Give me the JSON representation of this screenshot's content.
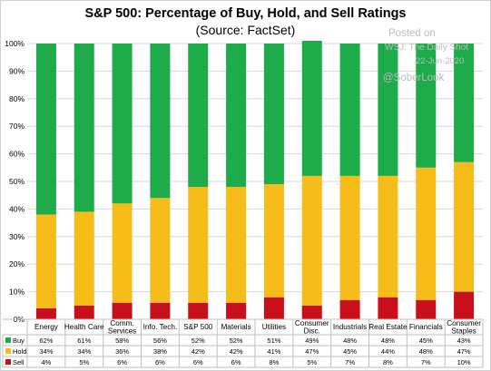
{
  "title": "S&P 500: Percentage of Buy, Hold, and Sell Ratings",
  "subtitle": "(Source: FactSet)",
  "watermark": {
    "posted": "Posted on",
    "source": "WSJ: The Daily Shot",
    "date": "22-Jun-2020",
    "handle": "@SoberLook"
  },
  "colors": {
    "buy": "#1eab4a",
    "hold": "#f6bd1a",
    "sell": "#c8101c"
  },
  "chart_data": {
    "type": "bar",
    "stacked": true,
    "title": "S&P 500: Percentage of Buy, Hold, and Sell Ratings",
    "subtitle": "(Source: FactSet)",
    "ylim": [
      0,
      100
    ],
    "yticks": [
      "0%",
      "10%",
      "20%",
      "30%",
      "40%",
      "50%",
      "60%",
      "70%",
      "80%",
      "90%",
      "100%"
    ],
    "grid": true,
    "legend": "bottom-left (data table)",
    "categories": [
      [
        "Energy"
      ],
      [
        "Health Care"
      ],
      [
        "Comm.",
        "Services"
      ],
      [
        "Info. Tech."
      ],
      [
        "S&P 500"
      ],
      [
        "Materials"
      ],
      [
        "Utilities"
      ],
      [
        "Consumer",
        "Disc."
      ],
      [
        "Industrials"
      ],
      [
        "Real Estate"
      ],
      [
        "Financials"
      ],
      [
        "Consumer",
        "Staples"
      ]
    ],
    "series": [
      {
        "name": "Sell",
        "key": "sell",
        "values": [
          4,
          5,
          6,
          6,
          6,
          6,
          8,
          5,
          7,
          8,
          7,
          10
        ]
      },
      {
        "name": "Hold",
        "key": "hold",
        "values": [
          34,
          34,
          36,
          38,
          42,
          42,
          41,
          47,
          45,
          44,
          48,
          47
        ]
      },
      {
        "name": "Buy",
        "key": "buy",
        "values": [
          62,
          61,
          58,
          56,
          52,
          52,
          51,
          49,
          48,
          48,
          45,
          43
        ]
      }
    ],
    "table_rows": [
      {
        "name": "Buy",
        "key": "buy",
        "labels": [
          "62%",
          "61%",
          "58%",
          "56%",
          "52%",
          "52%",
          "51%",
          "49%",
          "48%",
          "48%",
          "45%",
          "43%"
        ]
      },
      {
        "name": "Hold",
        "key": "hold",
        "labels": [
          "34%",
          "34%",
          "36%",
          "38%",
          "42%",
          "42%",
          "41%",
          "47%",
          "45%",
          "44%",
          "48%",
          "47%"
        ]
      },
      {
        "name": "Sell",
        "key": "sell",
        "labels": [
          "4%",
          "5%",
          "6%",
          "6%",
          "6%",
          "6%",
          "8%",
          "5%",
          "7%",
          "8%",
          "7%",
          "10%"
        ]
      }
    ]
  }
}
